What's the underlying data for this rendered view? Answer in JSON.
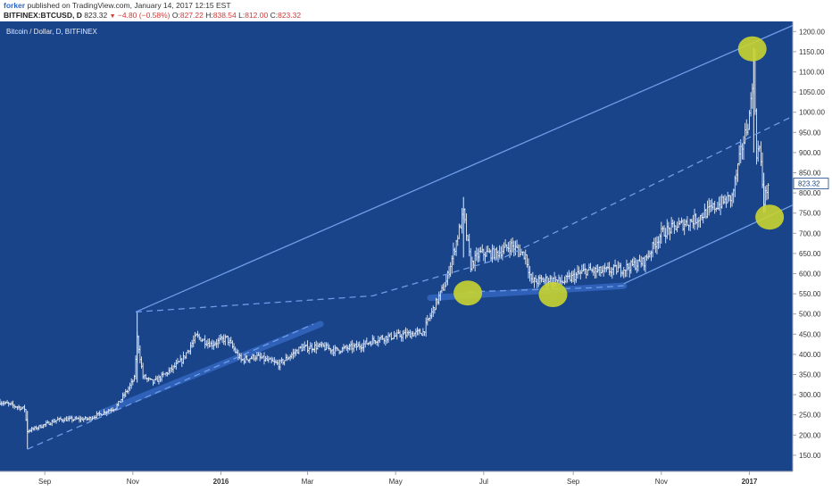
{
  "header": {
    "author": "forker",
    "published": "published on TradingView.com, January 14, 2017 12:15 EST",
    "symbol": "BITFINEX:BTCUSD, D",
    "last": "823.32",
    "change": "−4.80 (−0.58%)",
    "o_label": "O:",
    "o_value": "827.22",
    "h_label": "H:",
    "h_value": "838.54",
    "l_label": "L:",
    "l_value": "812.00",
    "c_label": "C:",
    "c_value": "823.32"
  },
  "chart_data": {
    "type": "bar",
    "subtype": "ohlc",
    "title": "Bitcoin / Dollar, D, BITFINEX",
    "x_ticks": [
      "Sep",
      "Nov",
      "2016",
      "Mar",
      "May",
      "Jul",
      "Sep",
      "Nov",
      "2017"
    ],
    "y_ticks": [
      "150.00",
      "200.00",
      "250.00",
      "300.00",
      "350.00",
      "400.00",
      "450.00",
      "500.00",
      "550.00",
      "600.00",
      "650.00",
      "700.00",
      "750.00",
      "800.00",
      "850.00",
      "900.00",
      "950.00",
      "1000.00",
      "1050.00",
      "1100.00",
      "1150.00",
      "1200.00"
    ],
    "ylim": [
      110,
      1225
    ],
    "last_price": "823.32",
    "grid": false,
    "price_keypoints": [
      [
        "2015-08-01",
        282
      ],
      [
        "2015-08-18",
        265
      ],
      [
        "2015-08-20",
        210
      ],
      [
        "2015-08-24",
        215
      ],
      [
        "2015-09-10",
        238
      ],
      [
        "2015-10-01",
        240
      ],
      [
        "2015-10-20",
        268
      ],
      [
        "2015-10-28",
        310
      ],
      [
        "2015-11-02",
        340
      ],
      [
        "2015-11-04",
        440
      ],
      [
        "2015-11-08",
        345
      ],
      [
        "2015-11-15",
        330
      ],
      [
        "2015-11-25",
        355
      ],
      [
        "2015-12-05",
        385
      ],
      [
        "2015-12-15",
        445
      ],
      [
        "2015-12-25",
        425
      ],
      [
        "2016-01-05",
        440
      ],
      [
        "2016-01-15",
        385
      ],
      [
        "2016-01-25",
        395
      ],
      [
        "2016-02-10",
        375
      ],
      [
        "2016-02-25",
        415
      ],
      [
        "2016-03-10",
        420
      ],
      [
        "2016-03-20",
        410
      ],
      [
        "2016-04-05",
        420
      ],
      [
        "2016-04-20",
        440
      ],
      [
        "2016-05-10",
        450
      ],
      [
        "2016-05-20",
        455
      ],
      [
        "2016-05-28",
        520
      ],
      [
        "2016-06-05",
        580
      ],
      [
        "2016-06-12",
        680
      ],
      [
        "2016-06-17",
        750
      ],
      [
        "2016-06-22",
        620
      ],
      [
        "2016-06-28",
        650
      ],
      [
        "2016-07-10",
        650
      ],
      [
        "2016-07-20",
        670
      ],
      [
        "2016-07-30",
        645
      ],
      [
        "2016-08-03",
        580
      ],
      [
        "2016-08-15",
        585
      ],
      [
        "2016-08-25",
        580
      ],
      [
        "2016-09-10",
        608
      ],
      [
        "2016-09-20",
        605
      ],
      [
        "2016-10-05",
        612
      ],
      [
        "2016-10-20",
        630
      ],
      [
        "2016-11-01",
        700
      ],
      [
        "2016-11-10",
        715
      ],
      [
        "2016-11-25",
        735
      ],
      [
        "2016-12-10",
        770
      ],
      [
        "2016-12-20",
        790
      ],
      [
        "2016-12-26",
        900
      ],
      [
        "2017-01-01",
        990
      ],
      [
        "2017-01-04",
        1120
      ],
      [
        "2017-01-06",
        900
      ],
      [
        "2017-01-08",
        910
      ],
      [
        "2017-01-11",
        780
      ],
      [
        "2017-01-14",
        823
      ]
    ],
    "trendlines": [
      {
        "style": "solid",
        "points": [
          [
            "2015-11-03",
            505
          ],
          [
            "2017-01-31",
            1215
          ]
        ]
      },
      {
        "style": "dashed",
        "points": [
          [
            "2015-11-03",
            505
          ],
          [
            "2016-04-15",
            545
          ],
          [
            "2016-07-15",
            640
          ],
          [
            "2017-01-31",
            990
          ]
        ]
      },
      {
        "style": "dashed",
        "points": [
          [
            "2015-08-20",
            165
          ],
          [
            "2016-03-05",
            475
          ]
        ]
      },
      {
        "style": "dashed",
        "points": [
          [
            "2016-06-20",
            555
          ],
          [
            "2016-09-15",
            565
          ],
          [
            "2016-10-06",
            570
          ]
        ]
      },
      {
        "style": "solid",
        "points": [
          [
            "2016-10-06",
            575
          ],
          [
            "2017-01-31",
            770
          ]
        ]
      }
    ],
    "channels": [
      {
        "points": [
          [
            "2015-10-10",
            255
          ],
          [
            "2016-03-10",
            475
          ]
        ]
      },
      {
        "points": [
          [
            "2016-05-25",
            540
          ],
          [
            "2016-10-06",
            570
          ]
        ]
      }
    ],
    "highlights": [
      {
        "date": "2017-01-03",
        "value": 1157
      },
      {
        "date": "2016-06-20",
        "value": 552
      },
      {
        "date": "2016-08-18",
        "value": 548
      },
      {
        "date": "2017-01-15",
        "value": 740
      }
    ],
    "colors": {
      "background": "#1a448a",
      "price": "#e4ebf5",
      "trendline": "#6e9ce8",
      "channel": "#3367c2",
      "highlight": "#c9d530",
      "axis_text": "#333333",
      "last_badge_bg": "#ffffff",
      "last_badge_text": "#1a448a"
    }
  }
}
